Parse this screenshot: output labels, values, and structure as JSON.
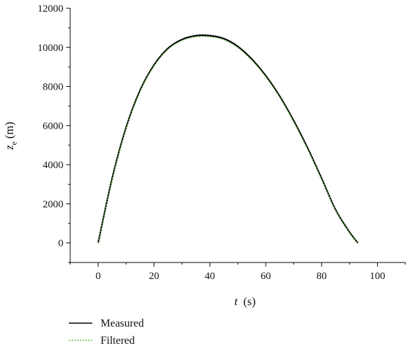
{
  "chart_data": {
    "type": "line",
    "xlabel": {
      "var": "t",
      "unit": "(s)"
    },
    "ylabel": {
      "var": "z",
      "sub": "e",
      "unit": "(m)"
    },
    "xlim": [
      -10,
      110
    ],
    "ylim": [
      -1000,
      12000
    ],
    "xticks": [
      0,
      20,
      40,
      60,
      80,
      100
    ],
    "yticks": [
      0,
      2000,
      4000,
      6000,
      8000,
      10000,
      12000
    ],
    "legend_position": "bottom-left",
    "series": [
      {
        "name": "Measured",
        "color": "#000000",
        "style": "solid",
        "x": [
          0,
          5,
          10,
          15,
          20,
          25,
          30,
          35,
          40,
          45,
          50,
          55,
          60,
          65,
          70,
          75,
          80,
          85,
          90,
          93
        ],
        "y": [
          0,
          3300,
          5900,
          7800,
          9100,
          9950,
          10400,
          10600,
          10600,
          10450,
          10050,
          9400,
          8550,
          7500,
          6250,
          4850,
          3300,
          1700,
          550,
          0
        ]
      },
      {
        "name": "Filtered",
        "color": "#5fbf3a",
        "style": "dotted",
        "x": [
          0,
          5,
          10,
          15,
          20,
          25,
          30,
          35,
          40,
          45,
          50,
          55,
          60,
          65,
          70,
          75,
          80,
          85,
          90,
          93
        ],
        "y": [
          0,
          3250,
          5850,
          7750,
          9050,
          9900,
          10350,
          10530,
          10530,
          10380,
          9980,
          9340,
          8500,
          7450,
          6200,
          4800,
          3260,
          1680,
          530,
          0
        ]
      }
    ]
  }
}
